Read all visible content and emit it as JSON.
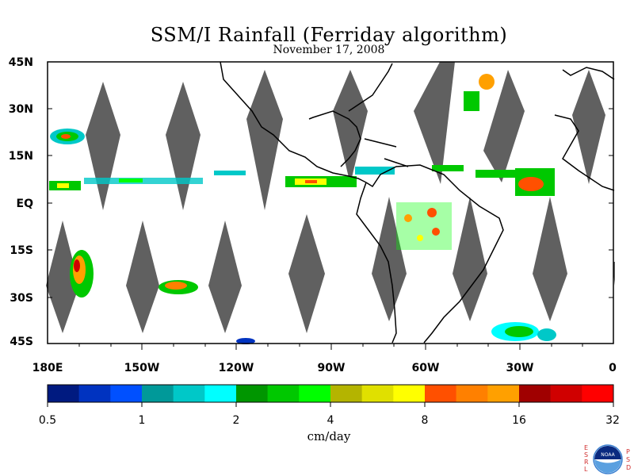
{
  "title": "SSM/I Rainfall (Ferriday algorithm)",
  "date": "November 17, 2008",
  "lat_labels": [
    "45N",
    "30N",
    "15N",
    "EQ",
    "15S",
    "30S",
    "45S"
  ],
  "lon_labels": [
    "180E",
    "150W",
    "120W",
    "90W",
    "60W",
    "30W",
    "0"
  ],
  "colorbar": {
    "labels": [
      "0.5",
      "1",
      "2",
      "4",
      "8",
      "16",
      "32"
    ],
    "units": "cm/day",
    "colors": [
      "#001a80",
      "#0033c0",
      "#0050ff",
      "#009999",
      "#00c8c8",
      "#00ffff",
      "#009600",
      "#00c800",
      "#00ff00",
      "#b4b400",
      "#e0e000",
      "#ffff00",
      "#ff5000",
      "#ff8000",
      "#ffa000",
      "#a00000",
      "#d00000",
      "#ff0000"
    ]
  },
  "logo": {
    "text": "NOAA",
    "left_letters": [
      "E",
      "S",
      "R",
      "L"
    ],
    "right_letters": [
      "P",
      "S",
      "D"
    ]
  },
  "map_colors": {
    "no_data_swath": "#606060",
    "coastline": "#000000"
  }
}
